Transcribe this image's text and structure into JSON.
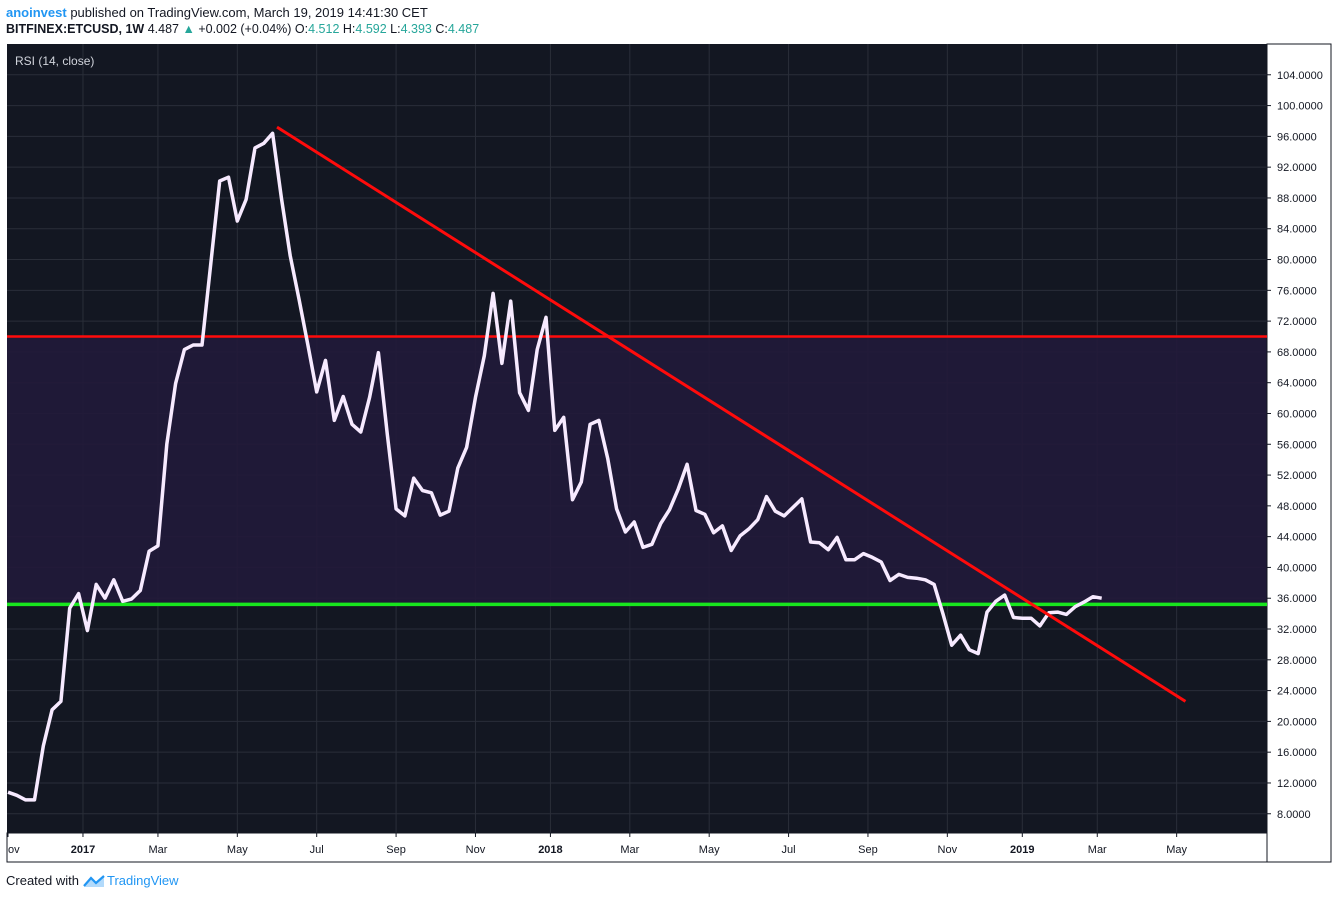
{
  "header": {
    "user": "anoinvest",
    "published": "published on TradingView.com, March 19, 2019 14:41:30 CET",
    "symbol": "BITFINEX:ETCUSD, 1W",
    "last": "4.487",
    "up_arrow": "▲",
    "change": "+0.002 (+0.04%)",
    "o_label": "O:",
    "o_val": "4.512",
    "h_label": "H:",
    "h_val": "4.592",
    "l_label": "L:",
    "l_val": "4.393",
    "c_label": "C:",
    "c_val": "4.487"
  },
  "footer": {
    "created": "Created with",
    "brand": "TradingView"
  },
  "colors": {
    "background": "#131722",
    "band": "#211a3a",
    "grid": "#2a2e39",
    "line": "#f7eaff",
    "red": "#ff0b0b",
    "green": "#18e61e",
    "text": "#d1d4dc"
  },
  "chart_data": {
    "type": "line",
    "title": "RSI (14, close)",
    "ylim": [
      5.5,
      108
    ],
    "y_ticks": [
      "104.0000",
      "100.0000",
      "96.0000",
      "92.0000",
      "88.0000",
      "84.0000",
      "80.0000",
      "76.0000",
      "72.0000",
      "68.0000",
      "64.0000",
      "60.0000",
      "56.0000",
      "52.0000",
      "48.0000",
      "44.0000",
      "40.0000",
      "36.0000",
      "32.0000",
      "28.0000",
      "24.0000",
      "20.0000",
      "16.0000",
      "12.0000",
      "8.0000"
    ],
    "x_labels": [
      {
        "label": "ov",
        "w": 0
      },
      {
        "label": "2017",
        "w": 8.5,
        "bold": true
      },
      {
        "label": "Mar",
        "w": 17
      },
      {
        "label": "May",
        "w": 26
      },
      {
        "label": "Jul",
        "w": 35
      },
      {
        "label": "Sep",
        "w": 44
      },
      {
        "label": "Nov",
        "w": 53
      },
      {
        "label": "2018",
        "w": 61.5,
        "bold": true
      },
      {
        "label": "Mar",
        "w": 70.5
      },
      {
        "label": "May",
        "w": 79.5
      },
      {
        "label": "Jul",
        "w": 88.5
      },
      {
        "label": "Sep",
        "w": 97.5
      },
      {
        "label": "Nov",
        "w": 106.5
      },
      {
        "label": "2019",
        "w": 115,
        "bold": true
      },
      {
        "label": "Mar",
        "w": 123.5
      },
      {
        "label": "May",
        "w": 132.5
      }
    ],
    "band": [
      35,
      70
    ],
    "series": [
      {
        "name": "RSI",
        "values": [
          10.8,
          10.4,
          9.8,
          9.8,
          16.8,
          21.5,
          22.6,
          34.7,
          36.6,
          31.8,
          37.8,
          36.0,
          38.4,
          35.6,
          35.9,
          37.0,
          42.1,
          42.8,
          56.0,
          63.9,
          68.3,
          68.9,
          68.9,
          79.6,
          90.2,
          90.7,
          85.0,
          87.8,
          94.5,
          95.1,
          96.4,
          88.0,
          80.5,
          74.8,
          68.9,
          62.8,
          66.9,
          59.1,
          62.2,
          58.6,
          57.6,
          62.1,
          67.9,
          57.3,
          47.6,
          46.7,
          51.6,
          50.0,
          49.7,
          46.8,
          47.3,
          52.9,
          55.6,
          62.1,
          67.5,
          75.6,
          66.5,
          74.6,
          62.7,
          60.4,
          68.3,
          72.5,
          57.8,
          59.5,
          48.8,
          51.1,
          58.6,
          59.1,
          54.1,
          47.6,
          44.6,
          45.9,
          42.6,
          43.0,
          45.7,
          47.5,
          50.2,
          53.4,
          47.4,
          46.9,
          44.5,
          45.4,
          42.2,
          44.1,
          45.0,
          46.2,
          49.2,
          47.3,
          46.7,
          47.8,
          48.9,
          43.3,
          43.2,
          42.3,
          43.9,
          41.0,
          41.0,
          41.8,
          41.3,
          40.7,
          38.3,
          39.1,
          38.7,
          38.6,
          38.4,
          37.8,
          34.0,
          29.9,
          31.2,
          29.3,
          28.8,
          34.2,
          35.6,
          36.4,
          33.5,
          33.4,
          33.4,
          32.4,
          34.1,
          34.2,
          33.9,
          34.9,
          35.5,
          36.2,
          36.0
        ]
      }
    ],
    "horizontal_lines": [
      {
        "name": "overbought-red-line",
        "value": 70,
        "color": "red"
      },
      {
        "name": "support-green-line",
        "value": 35.2,
        "color": "green"
      }
    ],
    "trendline": {
      "from_week": 30.5,
      "from_value": 97.2,
      "to_week": 133.5,
      "to_value": 22.6
    }
  }
}
